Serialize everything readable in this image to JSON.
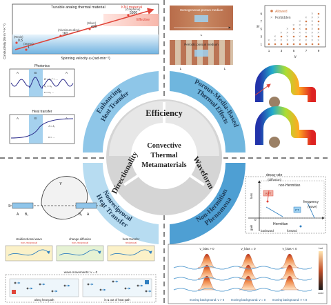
{
  "center": {
    "title_lines": [
      "Convective",
      "Thermal",
      "Metamaterials"
    ],
    "inner_labels": [
      "Efficiency",
      "Directionality",
      "Waveform"
    ],
    "outer_labels": {
      "top_left": [
        "Enhancing",
        "Heat Transfer"
      ],
      "top_right": [
        "Porous-Media-Based",
        "Thermal Effects"
      ],
      "bottom_left": [
        "Nonreciprocal",
        "Heat Transfer"
      ],
      "bottom_right": [
        "Non-Hermitian",
        "Phenomena"
      ]
    }
  },
  "panel_conductivity": {
    "ylabel": "Conductivity (W·m⁻¹·K⁻¹)",
    "xlabel": "Spinning velocity ω (rad·min⁻¹)",
    "arrow_label": "Tunable analog thermal material",
    "kni_label": "KNI material",
    "effective_label": "Effective",
    "points": [
      {
        "value": "5300",
        "name": "(Graphene)"
      },
      {
        "value": "429",
        "name": "(Silver)"
      },
      {
        "value": "160",
        "name": "(Aluminum alloy)"
      },
      {
        "value": "0.5",
        "name": "(Resin)"
      },
      {
        "value": "1",
        "name": "(Stress)"
      }
    ]
  },
  "panel_photonics": {
    "title": "Photonics",
    "zone_labels": [
      "A",
      "B",
      "A"
    ],
    "equations": [
      "k² = k₀² + ...",
      "n₁ ≈ n₂",
      "n = n₀ ..."
    ]
  },
  "panel_heat": {
    "title": "Heat transfer",
    "zone_labels": [
      "A",
      "B",
      "A"
    ],
    "equations": [
      "J = J₀",
      "n = ..."
    ]
  },
  "panel_porous": {
    "top_label": "Homogeneous porous medium",
    "bottom_label": "Periodic porous medium",
    "dims": [
      "L",
      "L",
      "L"
    ]
  },
  "panel_scatter": {
    "legend_allowed": "Allowed",
    "legend_forbidden": "Forbidden",
    "xlabel": "N",
    "ylabel": "M",
    "x_ticks": [
      "1",
      "3",
      "5",
      "7",
      "9"
    ],
    "y_ticks": [
      "1",
      "3",
      "5",
      "7",
      "9"
    ]
  },
  "panel_blob": {
    "labels": [
      "S",
      "A",
      "B₁",
      "B₂",
      "A",
      "S",
      "V"
    ]
  },
  "panel_flow": {
    "titles": [
      "Unidirectional wave",
      "change diffusion",
      "heat transfer"
    ],
    "subtitles": [
      "non-reciprocal",
      "non-reciprocal",
      "reciprocal"
    ]
  },
  "panel_wave": {
    "title": "wave movements: v = 0",
    "captions": [
      "along heat path",
      "in & out of heat path"
    ]
  },
  "panel_nonherm": {
    "ylabel_top": "decay rate",
    "ylabel_sub": "(diffusion)",
    "xlabel": "frequency",
    "xlabel_sub": "(wave)",
    "region_top": "non-Hermitian",
    "region_bottom": "Hermitian",
    "apt": "APT",
    "pt": "PT",
    "loss": "loss",
    "gain": "gain",
    "backward": "backward",
    "forward": "forward",
    "origin": "0"
  },
  "panel_peaks": {
    "headers": [
      "v_bias > 0",
      "v_bias = 0",
      "v_bias < 0"
    ],
    "captions": [
      "moving background: v > 0",
      "moving background: v = 0",
      "moving background: v < 0"
    ],
    "colorbar_hot": "hot",
    "colorbar_cold": "cold"
  },
  "colors": {
    "ring_light": "#bfe0f1",
    "ring_mid": "#6fb6de",
    "ring_dark": "#3b8ec9",
    "gray_ring": "#cfcfcf",
    "red": "#e0453a",
    "orange": "#f08a2a",
    "blue": "#2f7fc0"
  }
}
